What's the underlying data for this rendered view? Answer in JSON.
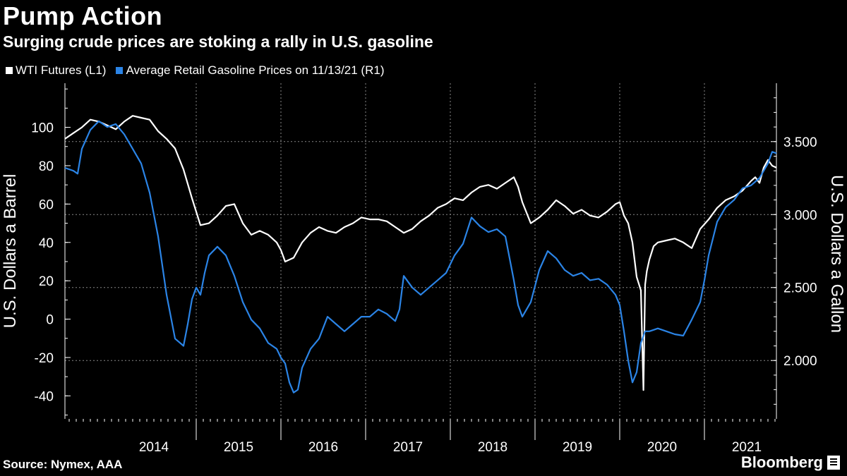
{
  "header": {
    "title": "Pump Action",
    "subtitle": "Surging crude prices are stoking a rally in U.S. gasoline"
  },
  "legend": {
    "items": [
      {
        "label": "WTI Futures (L1)",
        "color": "#ffffff"
      },
      {
        "label": "Average Retail Gasoline Prices on 11/13/21 (R1)",
        "color": "#2b84e6"
      }
    ]
  },
  "footer": {
    "source": "Source: Nymex, AAA",
    "brand": "Bloomberg"
  },
  "chart_data": {
    "type": "line",
    "title": "Pump Action",
    "xlabel": "",
    "x_range": [
      2013.45,
      2021.85
    ],
    "x_tick_labels": [
      "2014",
      "2015",
      "2016",
      "2017",
      "2018",
      "2019",
      "2020",
      "2021"
    ],
    "left_axis": {
      "label": "U.S. Dollars a Barrel",
      "range": [
        -52,
        123
      ],
      "ticks": [
        100,
        80,
        60,
        40,
        20,
        0,
        -20,
        -40
      ]
    },
    "right_axis": {
      "label": "U.S. Dollars a Gallon",
      "range": [
        1.6,
        3.9
      ],
      "ticks": [
        "3.500",
        "3.000",
        "2.500",
        "2.000"
      ],
      "tick_values": [
        3.5,
        3.0,
        2.5,
        2.0
      ]
    },
    "series": [
      {
        "name": "WTI Futures (L1)",
        "axis": "left",
        "color": "#ffffff",
        "x": [
          2013.45,
          2013.55,
          2013.65,
          2013.75,
          2013.85,
          2013.95,
          2014.05,
          2014.15,
          2014.25,
          2014.35,
          2014.45,
          2014.5,
          2014.55,
          2014.65,
          2014.75,
          2014.85,
          2014.95,
          2015.05,
          2015.15,
          2015.25,
          2015.35,
          2015.45,
          2015.55,
          2015.65,
          2015.75,
          2015.85,
          2015.95,
          2016.0,
          2016.05,
          2016.15,
          2016.25,
          2016.35,
          2016.45,
          2016.55,
          2016.65,
          2016.75,
          2016.85,
          2016.95,
          2017.05,
          2017.15,
          2017.25,
          2017.35,
          2017.45,
          2017.55,
          2017.65,
          2017.75,
          2017.85,
          2017.95,
          2018.05,
          2018.15,
          2018.25,
          2018.35,
          2018.45,
          2018.55,
          2018.65,
          2018.75,
          2018.8,
          2018.85,
          2018.95,
          2019.05,
          2019.15,
          2019.25,
          2019.35,
          2019.45,
          2019.55,
          2019.65,
          2019.75,
          2019.85,
          2019.95,
          2020.0,
          2020.05,
          2020.1,
          2020.15,
          2020.2,
          2020.25,
          2020.28,
          2020.3,
          2020.32,
          2020.35,
          2020.4,
          2020.45,
          2020.55,
          2020.65,
          2020.75,
          2020.85,
          2020.95,
          2021.05,
          2021.15,
          2021.25,
          2021.35,
          2021.45,
          2021.55,
          2021.6,
          2021.65,
          2021.7,
          2021.75,
          2021.8,
          2021.85
        ],
        "values": [
          94,
          97,
          100,
          104,
          103,
          101,
          99,
          103,
          106,
          105,
          104,
          101,
          98,
          94,
          89,
          78,
          63,
          49,
          50,
          54,
          59,
          60,
          50,
          44,
          46,
          44,
          40,
          36,
          30,
          32,
          40,
          45,
          48,
          46,
          45,
          48,
          50,
          53,
          52,
          52,
          51,
          48,
          45,
          47,
          51,
          54,
          58,
          60,
          63,
          62,
          66,
          69,
          70,
          68,
          71,
          74,
          69,
          61,
          50,
          53,
          57,
          62,
          59,
          55,
          57,
          54,
          53,
          56,
          60,
          61,
          54,
          50,
          40,
          22,
          15,
          -37,
          18,
          25,
          31,
          38,
          40,
          41,
          42,
          40,
          37,
          47,
          52,
          58,
          62,
          64,
          67,
          72,
          74,
          71,
          79,
          83,
          80,
          79
        ]
      },
      {
        "name": "Average Retail Gasoline Prices on 11/13/21 (R1)",
        "axis": "right",
        "color": "#2b84e6",
        "x": [
          2013.45,
          2013.55,
          2013.6,
          2013.65,
          2013.75,
          2013.85,
          2013.95,
          2014.05,
          2014.15,
          2014.25,
          2014.35,
          2014.45,
          2014.55,
          2014.65,
          2014.75,
          2014.85,
          2014.9,
          2014.95,
          2015.0,
          2015.05,
          2015.1,
          2015.15,
          2015.25,
          2015.35,
          2015.45,
          2015.55,
          2015.65,
          2015.75,
          2015.85,
          2015.95,
          2016.0,
          2016.05,
          2016.1,
          2016.15,
          2016.2,
          2016.25,
          2016.35,
          2016.45,
          2016.55,
          2016.65,
          2016.75,
          2016.85,
          2016.95,
          2017.05,
          2017.15,
          2017.25,
          2017.35,
          2017.4,
          2017.45,
          2017.55,
          2017.65,
          2017.75,
          2017.85,
          2017.95,
          2018.05,
          2018.15,
          2018.25,
          2018.35,
          2018.45,
          2018.55,
          2018.65,
          2018.75,
          2018.8,
          2018.85,
          2018.95,
          2019.05,
          2019.15,
          2019.25,
          2019.35,
          2019.45,
          2019.55,
          2019.65,
          2019.75,
          2019.85,
          2019.95,
          2020.0,
          2020.05,
          2020.1,
          2020.15,
          2020.2,
          2020.25,
          2020.3,
          2020.35,
          2020.4,
          2020.45,
          2020.55,
          2020.65,
          2020.75,
          2020.85,
          2020.95,
          2021.0,
          2021.05,
          2021.15,
          2021.25,
          2021.35,
          2021.45,
          2021.55,
          2021.65,
          2021.75,
          2021.8,
          2021.85
        ],
        "values": [
          3.32,
          3.3,
          3.28,
          3.45,
          3.58,
          3.64,
          3.6,
          3.62,
          3.55,
          3.45,
          3.35,
          3.15,
          2.85,
          2.45,
          2.15,
          2.1,
          2.25,
          2.42,
          2.5,
          2.45,
          2.6,
          2.72,
          2.78,
          2.72,
          2.58,
          2.4,
          2.28,
          2.22,
          2.12,
          2.08,
          2.02,
          1.98,
          1.85,
          1.78,
          1.8,
          1.95,
          2.08,
          2.15,
          2.3,
          2.25,
          2.2,
          2.25,
          2.3,
          2.3,
          2.35,
          2.32,
          2.27,
          2.35,
          2.58,
          2.5,
          2.45,
          2.5,
          2.55,
          2.6,
          2.72,
          2.8,
          2.98,
          2.92,
          2.88,
          2.9,
          2.85,
          2.55,
          2.38,
          2.3,
          2.4,
          2.62,
          2.75,
          2.7,
          2.62,
          2.58,
          2.6,
          2.55,
          2.56,
          2.52,
          2.45,
          2.38,
          2.2,
          2.0,
          1.85,
          1.92,
          2.12,
          2.2,
          2.2,
          2.21,
          2.22,
          2.2,
          2.18,
          2.17,
          2.28,
          2.4,
          2.55,
          2.72,
          2.95,
          3.05,
          3.1,
          3.18,
          3.2,
          3.25,
          3.35,
          3.43,
          3.42
        ]
      }
    ]
  }
}
